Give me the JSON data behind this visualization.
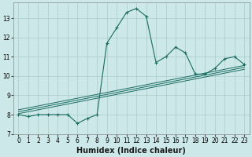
{
  "xlabel": "Humidex (Indice chaleur)",
  "bg_color": "#cce8e8",
  "grid_color": "#aacccc",
  "line_color": "#1a6b60",
  "xlim": [
    -0.5,
    23.5
  ],
  "ylim": [
    7.0,
    13.8
  ],
  "yticks": [
    7,
    8,
    9,
    10,
    11,
    12,
    13
  ],
  "xticks": [
    0,
    1,
    2,
    3,
    4,
    5,
    6,
    7,
    8,
    9,
    10,
    11,
    12,
    13,
    14,
    15,
    16,
    17,
    18,
    19,
    20,
    21,
    22,
    23
  ],
  "main_x": [
    0,
    1,
    2,
    3,
    4,
    5,
    6,
    7,
    8,
    9,
    10,
    11,
    12,
    13,
    14,
    15,
    16,
    17,
    18,
    19,
    20,
    21,
    22,
    23
  ],
  "main_y": [
    8.0,
    7.9,
    8.0,
    8.0,
    8.0,
    8.0,
    7.55,
    7.8,
    8.0,
    11.7,
    12.5,
    13.3,
    13.5,
    13.1,
    10.7,
    11.0,
    11.5,
    11.2,
    10.1,
    10.1,
    10.4,
    10.9,
    11.0,
    10.6
  ],
  "reg_lines": [
    {
      "x0": 0,
      "y0": 8.05,
      "x1": 23,
      "y1": 10.35
    },
    {
      "x0": 0,
      "y0": 8.15,
      "x1": 23,
      "y1": 10.45
    },
    {
      "x0": 0,
      "y0": 8.25,
      "x1": 23,
      "y1": 10.55
    }
  ],
  "xlabel_fontsize": 7,
  "tick_fontsize": 5.5
}
